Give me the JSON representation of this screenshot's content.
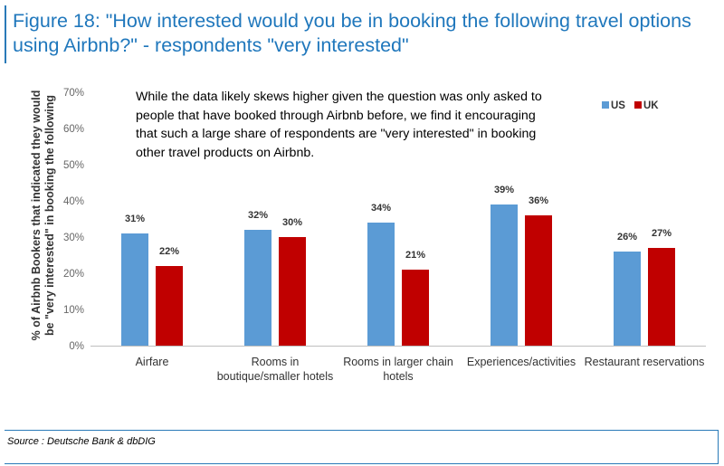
{
  "title": {
    "line1": "Figure 18: \"How interested would you be in booking the following travel options",
    "line2": "using Airbnb?\" - respondents \"very interested\""
  },
  "note": "While the data likely skews higher given the question was only asked to people that have booked through Airbnb before, we find it encouraging that such a large share of respondents are \"very interested\" in booking other travel products on Airbnb.",
  "source": "Source : Deutsche Bank & dbDIG",
  "colors": {
    "US": "#5b9bd5",
    "UK": "#c00000",
    "title": "#1f77bc"
  },
  "chart_data": {
    "type": "bar",
    "ylabel_lines": [
      "% of Airbnb Bookers that indicated they would",
      "be \"very interested\" in booking the following"
    ],
    "ylim": [
      0,
      70
    ],
    "yticks": [
      "0%",
      "10%",
      "20%",
      "30%",
      "40%",
      "50%",
      "60%",
      "70%"
    ],
    "categories": [
      [
        "Airfare"
      ],
      [
        "Rooms in",
        "boutique/smaller hotels"
      ],
      [
        "Rooms in larger chain",
        "hotels"
      ],
      [
        "Experiences/activities"
      ],
      [
        "Restaurant reservations"
      ]
    ],
    "series": [
      {
        "name": "US",
        "values": [
          31,
          32,
          34,
          39,
          26
        ],
        "labels": [
          "31%",
          "32%",
          "34%",
          "39%",
          "26%"
        ]
      },
      {
        "name": "UK",
        "values": [
          22,
          30,
          21,
          36,
          27
        ],
        "labels": [
          "22%",
          "30%",
          "21%",
          "36%",
          "27%"
        ]
      }
    ],
    "legend_position": "top-right",
    "grid": false
  }
}
